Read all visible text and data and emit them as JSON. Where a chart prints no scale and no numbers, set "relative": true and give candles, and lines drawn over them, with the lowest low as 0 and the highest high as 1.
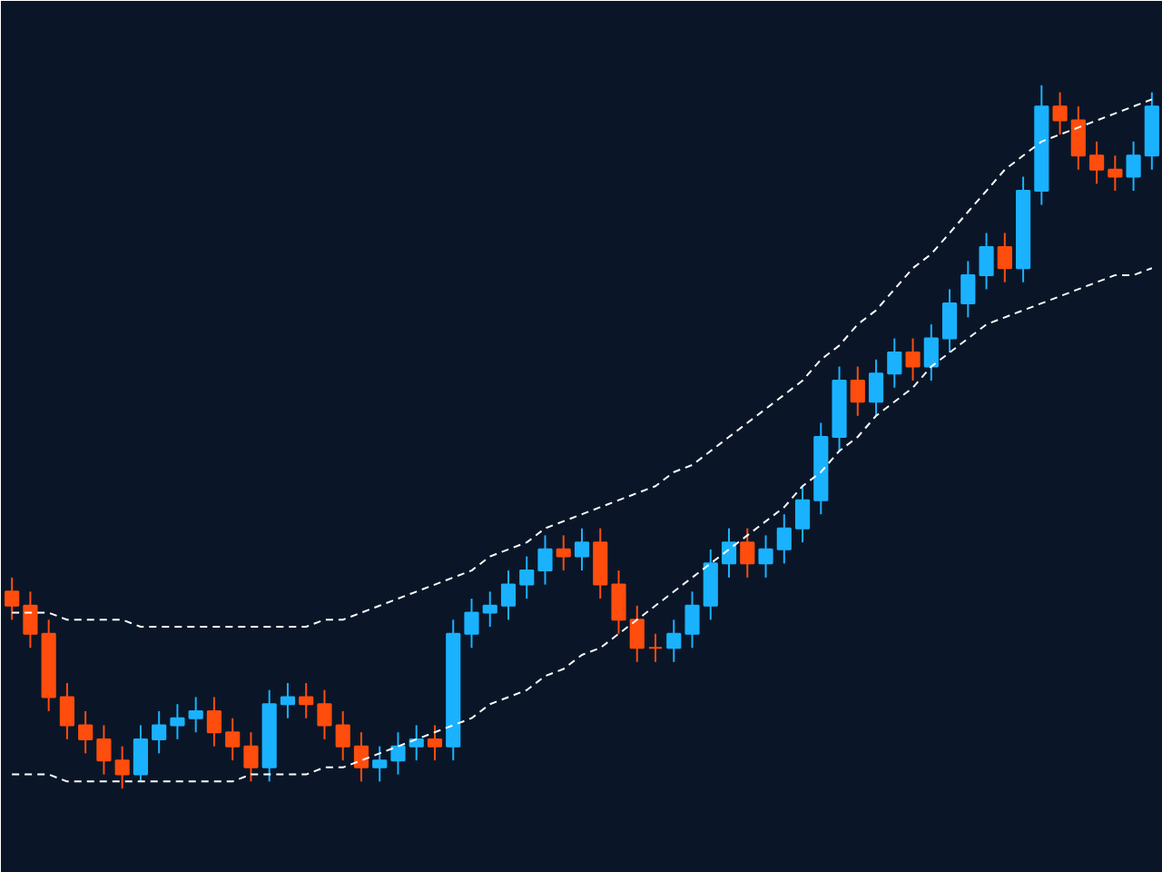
{
  "chart_data": {
    "type": "candlestick",
    "relative": true,
    "categories": [
      null,
      null,
      null,
      null,
      null,
      null,
      null,
      null,
      null,
      null,
      null,
      null,
      null,
      null,
      null,
      null,
      null,
      null,
      null,
      null,
      null,
      null,
      null,
      null,
      null,
      null,
      null,
      null,
      null,
      null,
      null,
      null,
      null,
      null,
      null,
      null,
      null,
      null,
      null,
      null,
      null,
      null,
      null,
      null,
      null,
      null,
      null,
      null,
      null,
      null,
      null,
      null,
      null,
      null,
      null,
      null,
      null,
      null,
      null,
      null,
      null,
      null,
      null
    ],
    "ohlc": [
      [
        0.28,
        0.3,
        0.24,
        0.26
      ],
      [
        0.26,
        0.28,
        0.2,
        0.22
      ],
      [
        0.22,
        0.24,
        0.11,
        0.13
      ],
      [
        0.13,
        0.15,
        0.07,
        0.09
      ],
      [
        0.09,
        0.11,
        0.05,
        0.07
      ],
      [
        0.07,
        0.09,
        0.02,
        0.04
      ],
      [
        0.04,
        0.06,
        0.0,
        0.02
      ],
      [
        0.02,
        0.09,
        0.01,
        0.07
      ],
      [
        0.07,
        0.11,
        0.05,
        0.09
      ],
      [
        0.09,
        0.12,
        0.07,
        0.1
      ],
      [
        0.1,
        0.13,
        0.08,
        0.11
      ],
      [
        0.11,
        0.13,
        0.06,
        0.08
      ],
      [
        0.08,
        0.1,
        0.04,
        0.06
      ],
      [
        0.06,
        0.08,
        0.01,
        0.03
      ],
      [
        0.03,
        0.14,
        0.01,
        0.12
      ],
      [
        0.12,
        0.15,
        0.1,
        0.13
      ],
      [
        0.13,
        0.15,
        0.1,
        0.12
      ],
      [
        0.12,
        0.14,
        0.07,
        0.09
      ],
      [
        0.09,
        0.11,
        0.04,
        0.06
      ],
      [
        0.06,
        0.08,
        0.01,
        0.03
      ],
      [
        0.03,
        0.06,
        0.01,
        0.04
      ],
      [
        0.04,
        0.08,
        0.02,
        0.06
      ],
      [
        0.06,
        0.09,
        0.04,
        0.07
      ],
      [
        0.07,
        0.09,
        0.04,
        0.06
      ],
      [
        0.06,
        0.24,
        0.04,
        0.22
      ],
      [
        0.22,
        0.27,
        0.2,
        0.25
      ],
      [
        0.25,
        0.28,
        0.23,
        0.26
      ],
      [
        0.26,
        0.31,
        0.24,
        0.29
      ],
      [
        0.29,
        0.33,
        0.27,
        0.31
      ],
      [
        0.31,
        0.36,
        0.29,
        0.34
      ],
      [
        0.34,
        0.36,
        0.31,
        0.33
      ],
      [
        0.33,
        0.37,
        0.31,
        0.35
      ],
      [
        0.35,
        0.37,
        0.27,
        0.29
      ],
      [
        0.29,
        0.31,
        0.22,
        0.24
      ],
      [
        0.24,
        0.26,
        0.18,
        0.2
      ],
      [
        0.2,
        0.22,
        0.18,
        0.2
      ],
      [
        0.2,
        0.24,
        0.18,
        0.22
      ],
      [
        0.22,
        0.28,
        0.2,
        0.26
      ],
      [
        0.26,
        0.34,
        0.24,
        0.32
      ],
      [
        0.32,
        0.37,
        0.3,
        0.35
      ],
      [
        0.35,
        0.37,
        0.3,
        0.32
      ],
      [
        0.32,
        0.36,
        0.3,
        0.34
      ],
      [
        0.34,
        0.39,
        0.32,
        0.37
      ],
      [
        0.37,
        0.43,
        0.35,
        0.41
      ],
      [
        0.41,
        0.52,
        0.39,
        0.5
      ],
      [
        0.5,
        0.6,
        0.48,
        0.58
      ],
      [
        0.58,
        0.6,
        0.53,
        0.55
      ],
      [
        0.55,
        0.61,
        0.53,
        0.59
      ],
      [
        0.59,
        0.64,
        0.57,
        0.62
      ],
      [
        0.62,
        0.64,
        0.58,
        0.6
      ],
      [
        0.6,
        0.66,
        0.58,
        0.64
      ],
      [
        0.64,
        0.71,
        0.62,
        0.69
      ],
      [
        0.69,
        0.75,
        0.67,
        0.73
      ],
      [
        0.73,
        0.79,
        0.71,
        0.77
      ],
      [
        0.77,
        0.79,
        0.72,
        0.74
      ],
      [
        0.74,
        0.87,
        0.72,
        0.85
      ],
      [
        0.85,
        1.0,
        0.83,
        0.97
      ],
      [
        0.97,
        0.99,
        0.93,
        0.95
      ],
      [
        0.95,
        0.97,
        0.88,
        0.9
      ],
      [
        0.9,
        0.92,
        0.86,
        0.88
      ],
      [
        0.88,
        0.9,
        0.85,
        0.87
      ],
      [
        0.87,
        0.92,
        0.85,
        0.9
      ],
      [
        0.9,
        0.99,
        0.88,
        0.97
      ]
    ],
    "colors": [
      "#ff4d0d",
      "#ff4d0d",
      "#ff4d0d",
      "#ff4d0d",
      "#ff4d0d",
      "#ff4d0d",
      "#ff4d0d",
      "#1ab2ff",
      "#1ab2ff",
      "#1ab2ff",
      "#1ab2ff",
      "#ff4d0d",
      "#ff4d0d",
      "#ff4d0d",
      "#1ab2ff",
      "#1ab2ff",
      "#ff4d0d",
      "#ff4d0d",
      "#ff4d0d",
      "#ff4d0d",
      "#1ab2ff",
      "#1ab2ff",
      "#1ab2ff",
      "#ff4d0d",
      "#1ab2ff",
      "#1ab2ff",
      "#1ab2ff",
      "#1ab2ff",
      "#1ab2ff",
      "#1ab2ff",
      "#ff4d0d",
      "#1ab2ff",
      "#ff4d0d",
      "#ff4d0d",
      "#ff4d0d",
      "#ff4d0d",
      "#1ab2ff",
      "#1ab2ff",
      "#1ab2ff",
      "#1ab2ff",
      "#ff4d0d",
      "#1ab2ff",
      "#1ab2ff",
      "#1ab2ff",
      "#1ab2ff",
      "#1ab2ff",
      "#ff4d0d",
      "#1ab2ff",
      "#1ab2ff",
      "#ff4d0d",
      "#1ab2ff",
      "#1ab2ff",
      "#1ab2ff",
      "#1ab2ff",
      "#ff4d0d",
      "#1ab2ff",
      "#1ab2ff",
      "#ff4d0d",
      "#ff4d0d",
      "#ff4d0d",
      "#ff4d0d",
      "#1ab2ff",
      "#1ab2ff"
    ],
    "series": [
      {
        "type": "line",
        "color": "#ffffff",
        "line_style": "dashed",
        "values": [
          0.25,
          0.25,
          0.25,
          0.24,
          0.24,
          0.24,
          0.24,
          0.23,
          0.23,
          0.23,
          0.23,
          0.23,
          0.23,
          0.23,
          0.23,
          0.23,
          0.23,
          0.24,
          0.24,
          0.25,
          0.26,
          0.27,
          0.28,
          0.29,
          0.3,
          0.31,
          0.33,
          0.34,
          0.35,
          0.37,
          0.38,
          0.39,
          0.4,
          0.41,
          0.42,
          0.43,
          0.45,
          0.46,
          0.48,
          0.5,
          0.52,
          0.54,
          0.56,
          0.58,
          0.61,
          0.63,
          0.66,
          0.68,
          0.71,
          0.74,
          0.76,
          0.79,
          0.82,
          0.85,
          0.88,
          0.9,
          0.92,
          0.93,
          0.94,
          0.95,
          0.96,
          0.97,
          0.98
        ]
      },
      {
        "type": "line",
        "color": "#ffffff",
        "line_style": "dashed",
        "values": [
          0.02,
          0.02,
          0.02,
          0.01,
          0.01,
          0.01,
          0.01,
          0.01,
          0.01,
          0.01,
          0.01,
          0.01,
          0.01,
          0.02,
          0.02,
          0.02,
          0.02,
          0.03,
          0.03,
          0.04,
          0.05,
          0.06,
          0.07,
          0.08,
          0.09,
          0.1,
          0.12,
          0.13,
          0.14,
          0.16,
          0.17,
          0.19,
          0.2,
          0.22,
          0.24,
          0.26,
          0.28,
          0.3,
          0.32,
          0.34,
          0.36,
          0.38,
          0.4,
          0.43,
          0.45,
          0.48,
          0.5,
          0.53,
          0.55,
          0.57,
          0.6,
          0.62,
          0.64,
          0.66,
          0.67,
          0.68,
          0.69,
          0.7,
          0.71,
          0.72,
          0.73,
          0.73,
          0.74
        ]
      }
    ]
  }
}
